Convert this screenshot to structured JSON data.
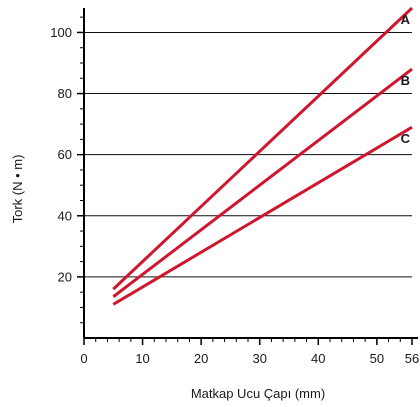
{
  "chart_data": {
    "type": "line",
    "xlabel": "Matkap Ucu Çapı (mm)",
    "ylabel": "Tork (N • m)",
    "xlim": [
      0,
      56
    ],
    "ylim": [
      0,
      108
    ],
    "xticks": [
      0,
      10,
      20,
      30,
      40,
      50,
      56
    ],
    "yticks": [
      20,
      40,
      60,
      80,
      100
    ],
    "gridlines_y": [
      20,
      40,
      60,
      80,
      100
    ],
    "grid": "horizontal",
    "line_color": "#d0162e",
    "series": [
      {
        "name": "A",
        "x": [
          5,
          56
        ],
        "y": [
          16,
          108
        ]
      },
      {
        "name": "B",
        "x": [
          5,
          56
        ],
        "y": [
          13.5,
          88
        ]
      },
      {
        "name": "C",
        "x": [
          5,
          56
        ],
        "y": [
          11,
          69
        ]
      }
    ]
  }
}
